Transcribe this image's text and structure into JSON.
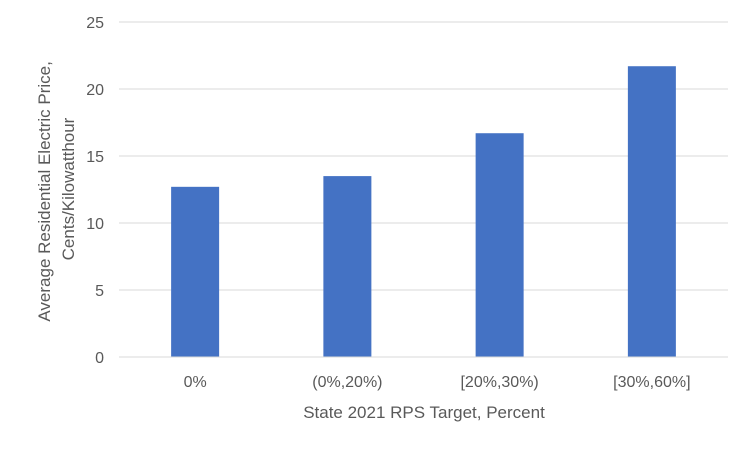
{
  "chart_data": {
    "type": "bar",
    "categories": [
      "0%",
      "(0%,20%)",
      "[20%,30%)",
      "[30%,60%]"
    ],
    "values": [
      12.7,
      13.5,
      16.7,
      21.7
    ],
    "title": "",
    "xlabel": "State 2021 RPS Target, Percent",
    "ylabel_lines": [
      "Average Residential Electric Price,",
      "Cents/Kilowatthour"
    ],
    "ylim": [
      0,
      25
    ],
    "yticks": [
      0,
      5,
      10,
      15,
      20,
      25
    ],
    "grid": true,
    "legend": "none",
    "bar_color": "#4472C4",
    "grid_color": "#D9D9D9",
    "text_color": "#595959"
  }
}
